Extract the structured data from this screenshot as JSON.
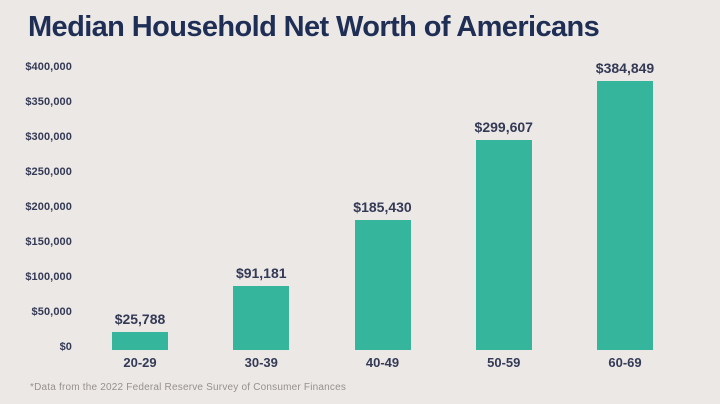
{
  "chart_data": {
    "type": "bar",
    "title": "Median Household Net Worth of Americans",
    "footnote": "*Data from the 2022 Federal Reserve Survey of Consumer Finances",
    "categories": [
      "20-29",
      "30-39",
      "40-49",
      "50-59",
      "60-69"
    ],
    "values": [
      25788,
      91181,
      185430,
      299607,
      384849
    ],
    "value_labels": [
      "$25,788",
      "$91,181",
      "$185,430",
      "$299,607",
      "$384,849"
    ],
    "xlabel": "",
    "ylabel": "",
    "ylim": [
      0,
      400000
    ],
    "y_ticks": [
      {
        "label": "$400,000",
        "value": 400000
      },
      {
        "label": "$350,000",
        "value": 350000
      },
      {
        "label": "$300,000",
        "value": 300000
      },
      {
        "label": "$250,000",
        "value": 250000
      },
      {
        "label": "$200,000",
        "value": 200000
      },
      {
        "label": "$150,000",
        "value": 150000
      },
      {
        "label": "$100,000",
        "value": 100000
      },
      {
        "label": "$50,000",
        "value": 50000
      },
      {
        "label": "$0",
        "value": 0
      }
    ],
    "grid": false,
    "legend": false
  },
  "colors": {
    "background": "#ece8e6",
    "bar": "#35b69c",
    "title_text": "#1e2e55",
    "label_text": "#343a55",
    "footnote_text": "#96908e"
  }
}
